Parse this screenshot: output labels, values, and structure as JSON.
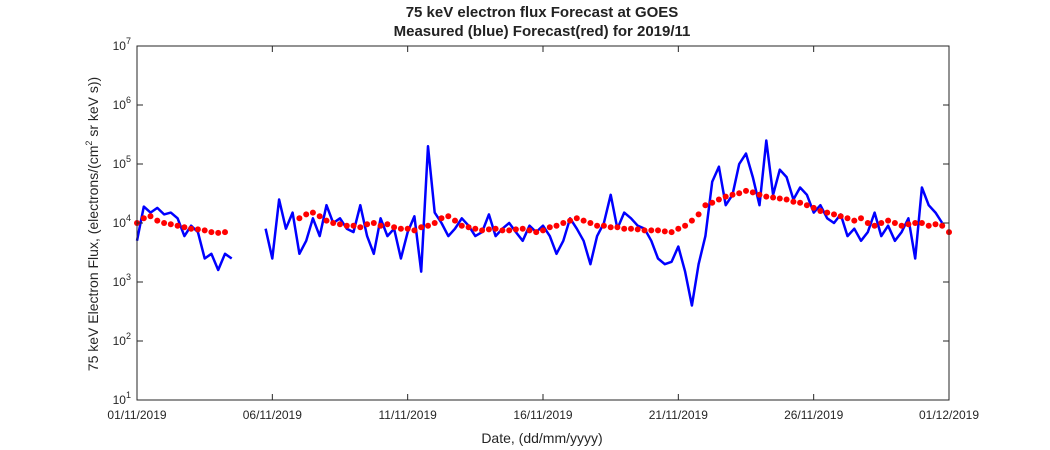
{
  "chart_data": {
    "type": "line",
    "title": "75 keV electron flux Forecast at GOES",
    "subtitle": "Measured (blue) Forecast(red) for 2019/11",
    "xlabel": "Date, (dd/mm/yyyy)",
    "ylabel": {
      "prefix": "75 keV Electron Flux, (electrons/(cm",
      "sup": "2",
      "suffix": " sr keV s))"
    },
    "x_range": [
      "2019-11-01",
      "2019-12-01"
    ],
    "x_ticks": [
      "01/11/2019",
      "06/11/2019",
      "11/11/2019",
      "16/11/2019",
      "21/11/2019",
      "26/11/2019",
      "01/12/2019"
    ],
    "y_scale": "log",
    "ylim": [
      10,
      10000000
    ],
    "y_ticks": [
      {
        "base": "10",
        "exp": "1"
      },
      {
        "base": "10",
        "exp": "2"
      },
      {
        "base": "10",
        "exp": "3"
      },
      {
        "base": "10",
        "exp": "4"
      },
      {
        "base": "10",
        "exp": "5"
      },
      {
        "base": "10",
        "exp": "6"
      },
      {
        "base": "10",
        "exp": "7"
      }
    ],
    "grid": false,
    "series": [
      {
        "role": "measured",
        "color": "#0000ff",
        "style": "line",
        "segments": [
          {
            "x": [
              "2019-11-01",
              "2019-11-01T06",
              "2019-11-01T12",
              "2019-11-01T18",
              "2019-11-02",
              "2019-11-02T06",
              "2019-11-02T12",
              "2019-11-02T18",
              "2019-11-03",
              "2019-11-03T06",
              "2019-11-03T12",
              "2019-11-03T18",
              "2019-11-04",
              "2019-11-04T06",
              "2019-11-04T12"
            ],
            "y": [
              5000,
              19000,
              15000,
              18000,
              14000,
              15000,
              12000,
              6000,
              9000,
              7000,
              2500,
              3000,
              1600,
              3000,
              2500
            ]
          },
          {
            "x": [
              "2019-11-05T18",
              "2019-11-06",
              "2019-11-06T06",
              "2019-11-06T12",
              "2019-11-06T18",
              "2019-11-07",
              "2019-11-07T06",
              "2019-11-07T12",
              "2019-11-07T18",
              "2019-11-08",
              "2019-11-08T06",
              "2019-11-08T12",
              "2019-11-08T18",
              "2019-11-09",
              "2019-11-09T06",
              "2019-11-09T12",
              "2019-11-09T18",
              "2019-11-10",
              "2019-11-10T06",
              "2019-11-10T12",
              "2019-11-10T18",
              "2019-11-11",
              "2019-11-11T06",
              "2019-11-11T12",
              "2019-11-11T18",
              "2019-11-12",
              "2019-11-12T06",
              "2019-11-12T12",
              "2019-11-12T18",
              "2019-11-13",
              "2019-11-13T06",
              "2019-11-13T12",
              "2019-11-13T18",
              "2019-11-14",
              "2019-11-14T06",
              "2019-11-14T12",
              "2019-11-14T18",
              "2019-11-15",
              "2019-11-15T06",
              "2019-11-15T12",
              "2019-11-15T18",
              "2019-11-16",
              "2019-11-16T06",
              "2019-11-16T12",
              "2019-11-16T18",
              "2019-11-17",
              "2019-11-17T06",
              "2019-11-17T12",
              "2019-11-17T18",
              "2019-11-18",
              "2019-11-18T06",
              "2019-11-18T12",
              "2019-11-18T18",
              "2019-11-19",
              "2019-11-19T06",
              "2019-11-19T12",
              "2019-11-19T18",
              "2019-11-20",
              "2019-11-20T06",
              "2019-11-20T12",
              "2019-11-20T18",
              "2019-11-21",
              "2019-11-21T06",
              "2019-11-21T12",
              "2019-11-21T18",
              "2019-11-22",
              "2019-11-22T06",
              "2019-11-22T12",
              "2019-11-22T18",
              "2019-11-23",
              "2019-11-23T06",
              "2019-11-23T12",
              "2019-11-23T18",
              "2019-11-24",
              "2019-11-24T06",
              "2019-11-24T12",
              "2019-11-24T18",
              "2019-11-25",
              "2019-11-25T06",
              "2019-11-25T12",
              "2019-11-25T18",
              "2019-11-26",
              "2019-11-26T06",
              "2019-11-26T12",
              "2019-11-26T18",
              "2019-11-27",
              "2019-11-27T06",
              "2019-11-27T12",
              "2019-11-27T18",
              "2019-11-28",
              "2019-11-28T06",
              "2019-11-28T12",
              "2019-11-28T18",
              "2019-11-29",
              "2019-11-29T06",
              "2019-11-29T12",
              "2019-11-29T18",
              "2019-11-30",
              "2019-11-30T06",
              "2019-11-30T12",
              "2019-11-30T18"
            ],
            "y": [
              8000,
              2500,
              25000,
              8000,
              15000,
              3000,
              5000,
              12000,
              6000,
              20000,
              10000,
              12000,
              8000,
              7000,
              20000,
              6000,
              3000,
              12000,
              6000,
              8000,
              2500,
              7000,
              13000,
              1500,
              200000,
              15000,
              10000,
              6000,
              8000,
              12000,
              9000,
              6000,
              7000,
              14000,
              6000,
              8000,
              10000,
              7000,
              5000,
              9000,
              7000,
              9000,
              6000,
              3000,
              5000,
              12000,
              8000,
              5000,
              2000,
              6000,
              10000,
              30000,
              8000,
              15000,
              12000,
              9000,
              8000,
              5000,
              2500,
              2000,
              2200,
              4000,
              1500,
              400,
              2000,
              6000,
              50000,
              90000,
              20000,
              30000,
              100000,
              150000,
              60000,
              20000,
              250000,
              30000,
              80000,
              60000,
              25000,
              40000,
              30000,
              15000,
              20000,
              12000,
              10000,
              14000,
              6000,
              8000,
              5000,
              7000,
              15000,
              6000,
              9000,
              5000,
              7000,
              12000,
              2500,
              40000,
              20000,
              15000,
              10000
            ]
          }
        ]
      },
      {
        "role": "forecast",
        "color": "#ff0000",
        "style": "dots",
        "segments": [
          {
            "x": [
              "2019-11-01",
              "2019-11-01T06",
              "2019-11-01T12",
              "2019-11-01T18",
              "2019-11-02",
              "2019-11-02T06",
              "2019-11-02T12",
              "2019-11-02T18",
              "2019-11-03",
              "2019-11-03T06",
              "2019-11-03T12",
              "2019-11-03T18",
              "2019-11-04",
              "2019-11-04T06"
            ],
            "y": [
              10000,
              12000,
              13000,
              11000,
              10000,
              9500,
              9000,
              8500,
              8000,
              7800,
              7500,
              7000,
              6800,
              7000
            ]
          },
          {
            "x": [
              "2019-11-07",
              "2019-11-07T06",
              "2019-11-07T12",
              "2019-11-07T18",
              "2019-11-08",
              "2019-11-08T06",
              "2019-11-08T12",
              "2019-11-08T18",
              "2019-11-09",
              "2019-11-09T06",
              "2019-11-09T12",
              "2019-11-09T18",
              "2019-11-10",
              "2019-11-10T06",
              "2019-11-10T12",
              "2019-11-10T18",
              "2019-11-11",
              "2019-11-11T06",
              "2019-11-11T12",
              "2019-11-11T18",
              "2019-11-12",
              "2019-11-12T06",
              "2019-11-12T12",
              "2019-11-12T18",
              "2019-11-13",
              "2019-11-13T06",
              "2019-11-13T12",
              "2019-11-13T18",
              "2019-11-14",
              "2019-11-14T06",
              "2019-11-14T12",
              "2019-11-14T18",
              "2019-11-15",
              "2019-11-15T06",
              "2019-11-15T12",
              "2019-11-15T18",
              "2019-11-16",
              "2019-11-16T06",
              "2019-11-16T12",
              "2019-11-16T18",
              "2019-11-17",
              "2019-11-17T06",
              "2019-11-17T12",
              "2019-11-17T18",
              "2019-11-18",
              "2019-11-18T06",
              "2019-11-18T12",
              "2019-11-18T18",
              "2019-11-19",
              "2019-11-19T06",
              "2019-11-19T12",
              "2019-11-19T18",
              "2019-11-20",
              "2019-11-20T06",
              "2019-11-20T12",
              "2019-11-20T18",
              "2019-11-21",
              "2019-11-21T06",
              "2019-11-21T12",
              "2019-11-21T18",
              "2019-11-22",
              "2019-11-22T06",
              "2019-11-22T12",
              "2019-11-22T18",
              "2019-11-23",
              "2019-11-23T06",
              "2019-11-23T12",
              "2019-11-23T18",
              "2019-11-24",
              "2019-11-24T06",
              "2019-11-24T12",
              "2019-11-24T18",
              "2019-11-25",
              "2019-11-25T06",
              "2019-11-25T12",
              "2019-11-25T18",
              "2019-11-26",
              "2019-11-26T06",
              "2019-11-26T12",
              "2019-11-26T18",
              "2019-11-27",
              "2019-11-27T06",
              "2019-11-27T12",
              "2019-11-27T18",
              "2019-11-28",
              "2019-11-28T06",
              "2019-11-28T12",
              "2019-11-28T18",
              "2019-11-29",
              "2019-11-29T06",
              "2019-11-29T12",
              "2019-11-29T18",
              "2019-11-30",
              "2019-11-30T06",
              "2019-11-30T12",
              "2019-11-30T18",
              "2019-12-01"
            ],
            "y": [
              12000,
              14000,
              15000,
              13000,
              11000,
              10000,
              9500,
              9000,
              9000,
              8500,
              9500,
              10000,
              9000,
              9500,
              8500,
              8000,
              8000,
              7500,
              8500,
              9000,
              10000,
              12000,
              13000,
              11000,
              9000,
              8500,
              8000,
              7500,
              7800,
              8000,
              7500,
              7500,
              7800,
              8000,
              7500,
              7000,
              7500,
              8500,
              9000,
              10000,
              11000,
              12000,
              11000,
              10000,
              9000,
              9000,
              8500,
              8500,
              8000,
              8000,
              7800,
              7500,
              7500,
              7500,
              7200,
              7000,
              8000,
              9000,
              11000,
              14000,
              20000,
              22000,
              25000,
              28000,
              30000,
              32000,
              35000,
              33000,
              30000,
              28000,
              27000,
              26000,
              25000,
              23000,
              22000,
              20000,
              18000,
              16000,
              15000,
              14000,
              13000,
              12000,
              11000,
              12000,
              10000,
              9000,
              10000,
              11000,
              10000,
              9000,
              9500,
              10000,
              10000,
              9000,
              9500,
              9000,
              7000
            ]
          }
        ]
      }
    ]
  }
}
